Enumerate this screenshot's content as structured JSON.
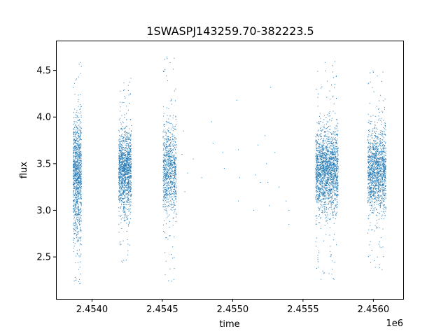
{
  "chart_data": {
    "type": "scatter",
    "title": "1SWASPJ143259.70-382223.5",
    "xlabel": "time",
    "ylabel": "flux",
    "x_offset_label": "1e6",
    "xlim": [
      2453744,
      2456212
    ],
    "ylim": [
      2.05,
      4.82
    ],
    "x_ticks": [
      2454000,
      2454500,
      2455000,
      2455500,
      2456000
    ],
    "x_tick_labels": [
      "2.4540",
      "2.4545",
      "2.4550",
      "2.4555",
      "2.4560"
    ],
    "y_ticks": [
      2.5,
      3.0,
      3.5,
      4.0,
      4.5
    ],
    "y_tick_labels": [
      "2.5",
      "3.0",
      "3.5",
      "4.0",
      "4.5"
    ],
    "grid": false,
    "marker_color": "#1f77b4",
    "series": [
      {
        "clusters": [
          {
            "x_start": 2453865,
            "x_end": 2453925,
            "center": 3.35,
            "spread": 0.32,
            "y_min": 2.17,
            "y_max": 4.65,
            "count": 1100
          },
          {
            "x_start": 2454190,
            "x_end": 2454280,
            "center": 3.42,
            "spread": 0.22,
            "y_min": 2.18,
            "y_max": 4.42,
            "count": 1300
          },
          {
            "x_start": 2454505,
            "x_end": 2454600,
            "center": 3.42,
            "spread": 0.25,
            "y_min": 2.2,
            "y_max": 4.65,
            "count": 900
          },
          {
            "x_start": 2455590,
            "x_end": 2455750,
            "center": 3.42,
            "spread": 0.22,
            "y_min": 2.25,
            "y_max": 4.65,
            "count": 1900
          },
          {
            "x_start": 2455960,
            "x_end": 2456090,
            "center": 3.42,
            "spread": 0.22,
            "y_min": 2.2,
            "y_max": 4.5,
            "count": 1400
          }
        ],
        "sparse_points": [
          [
            2454650,
            3.85
          ],
          [
            2454640,
            3.6
          ],
          [
            2454660,
            3.2
          ],
          [
            2454680,
            3.4
          ],
          [
            2454850,
            3.95
          ],
          [
            2454860,
            3.72
          ],
          [
            2454930,
            3.62
          ],
          [
            2454940,
            3.45
          ],
          [
            2455030,
            4.18
          ],
          [
            2455040,
            3.65
          ],
          [
            2455050,
            3.35
          ],
          [
            2455040,
            3.1
          ],
          [
            2455160,
            3.38
          ],
          [
            2455180,
            3.7
          ],
          [
            2455200,
            3.3
          ],
          [
            2455230,
            3.8
          ],
          [
            2455240,
            3.5
          ],
          [
            2455250,
            3.3
          ],
          [
            2455260,
            3.05
          ],
          [
            2455270,
            4.32
          ],
          [
            2455300,
            3.62
          ],
          [
            2455330,
            3.25
          ],
          [
            2455380,
            3.1
          ],
          [
            2455400,
            2.85
          ],
          [
            2455400,
            3.0
          ],
          [
            2455150,
            3.0
          ],
          [
            2454720,
            3.55
          ],
          [
            2454780,
            3.35
          ]
        ]
      }
    ]
  }
}
